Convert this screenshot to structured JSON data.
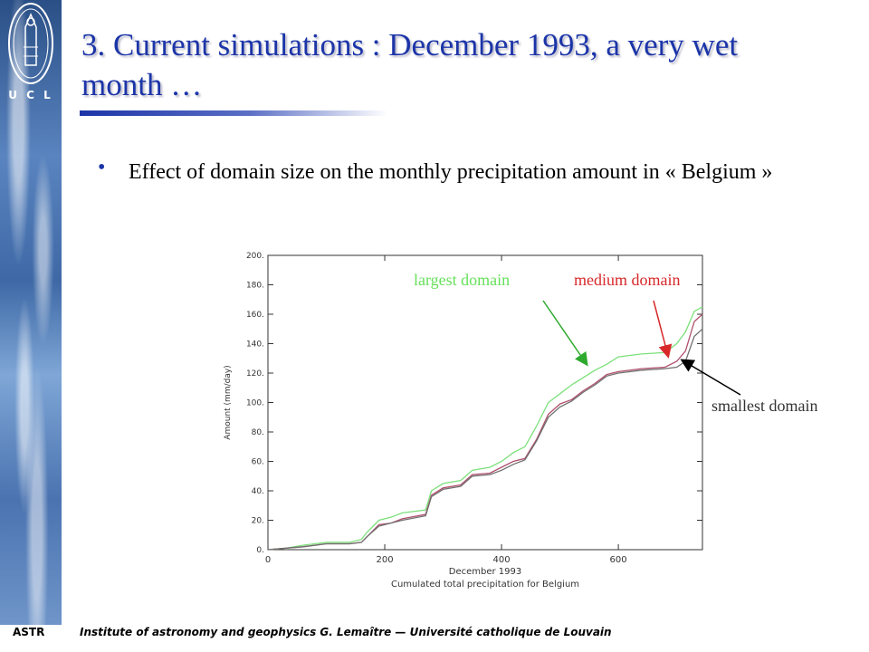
{
  "logo": {
    "text": "U C L"
  },
  "slide": {
    "title": "3. Current simulations : December 1993, a very wet month …",
    "bullet": "Effect of domain size on the monthly precipitation amount in « Belgium »"
  },
  "colors": {
    "largest": "#7be07a",
    "medium": "#b0506c",
    "smallest": "#707070",
    "title": "#1c35a8"
  },
  "annotations": {
    "largest": "largest domain",
    "medium": "medium domain",
    "smallest": "smallest domain"
  },
  "footer": {
    "left": "ASTR",
    "text": "Institute of astronomy and geophysics G. Lemaître — Université catholique de Louvain"
  },
  "chart_data": {
    "type": "line",
    "xlabel": "December 1993",
    "ylabel": "Amount (mm/day)",
    "caption": "Cumulated total precipitation for Belgium",
    "xlim": [
      0,
      744
    ],
    "ylim": [
      0,
      200
    ],
    "xticks": [
      0,
      200,
      400,
      600
    ],
    "xtick_labels": [
      "0",
      "200",
      "400",
      "600"
    ],
    "yticks": [
      0,
      20,
      40,
      60,
      80,
      100,
      120,
      140,
      160,
      180,
      200
    ],
    "ytick_labels": [
      "0.",
      "20.",
      "40.",
      "60.",
      "80.",
      "100.",
      "120.",
      "140.",
      "160.",
      "180.",
      "200."
    ],
    "series": [
      {
        "name": "largest domain",
        "x": [
          0,
          30,
          60,
          100,
          140,
          160,
          170,
          190,
          210,
          230,
          270,
          280,
          300,
          330,
          350,
          380,
          400,
          420,
          440,
          460,
          480,
          500,
          520,
          540,
          560,
          580,
          600,
          640,
          680,
          700,
          715,
          730,
          744
        ],
        "y": [
          0,
          1,
          3,
          5,
          5,
          7,
          12,
          20,
          22,
          25,
          27,
          40,
          45,
          47,
          54,
          56,
          60,
          66,
          70,
          84,
          100,
          106,
          112,
          117,
          122,
          126,
          131,
          133,
          134,
          140,
          148,
          162,
          165
        ]
      },
      {
        "name": "medium domain",
        "x": [
          0,
          30,
          60,
          100,
          140,
          160,
          170,
          190,
          210,
          230,
          270,
          280,
          300,
          330,
          350,
          380,
          400,
          420,
          440,
          460,
          480,
          500,
          520,
          540,
          560,
          580,
          600,
          640,
          680,
          700,
          715,
          730,
          744
        ],
        "y": [
          0,
          1,
          2,
          4,
          4,
          5,
          9,
          17,
          18,
          21,
          24,
          37,
          42,
          44,
          51,
          52,
          56,
          60,
          62,
          75,
          92,
          99,
          102,
          108,
          113,
          119,
          121,
          123,
          124,
          128,
          135,
          155,
          160
        ]
      },
      {
        "name": "smallest domain",
        "x": [
          0,
          30,
          60,
          100,
          140,
          160,
          170,
          190,
          210,
          230,
          270,
          280,
          300,
          330,
          350,
          380,
          400,
          420,
          440,
          460,
          480,
          500,
          520,
          540,
          560,
          580,
          600,
          640,
          680,
          700,
          715,
          730,
          744
        ],
        "y": [
          0,
          1,
          2,
          4,
          4,
          5,
          9,
          16,
          18,
          20,
          23,
          36,
          41,
          43,
          50,
          51,
          54,
          58,
          61,
          74,
          90,
          97,
          101,
          107,
          112,
          118,
          120,
          122,
          123,
          124,
          128,
          145,
          150
        ]
      }
    ]
  }
}
